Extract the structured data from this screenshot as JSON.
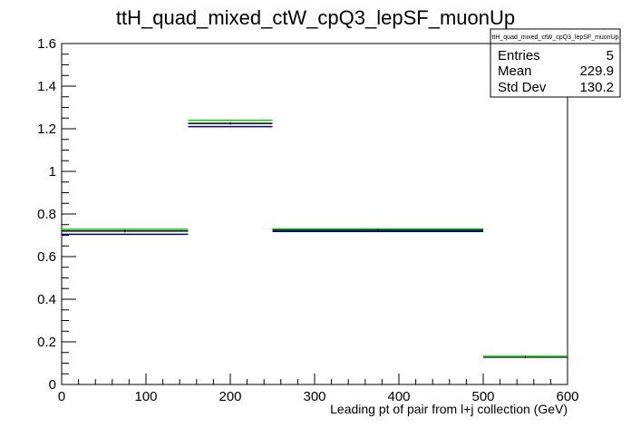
{
  "chart_data": {
    "type": "line",
    "title": "ttH_quad_mixed_ctW_cpQ3_lepSF_muonUp",
    "xlabel": "Leading pt of pair from l+j collection (GeV)",
    "ylabel": "",
    "xlim": [
      0,
      600
    ],
    "ylim": [
      0,
      1.6
    ],
    "x_ticks": [
      0,
      100,
      200,
      300,
      400,
      500,
      600
    ],
    "y_ticks": [
      "0",
      "0.2",
      "0.4",
      "0.6",
      "0.8",
      "1",
      "1.2",
      "1.4",
      "1.6"
    ],
    "bin_edges": [
      0,
      150,
      250,
      500,
      600
    ],
    "series": [
      {
        "color": "#000000",
        "values": [
          0.72,
          1.225,
          0.725,
          0.13
        ]
      },
      {
        "color": "#00cc00",
        "values": [
          0.728,
          1.24,
          0.73,
          0.132
        ]
      },
      {
        "color": "#000099",
        "values": [
          0.705,
          1.21,
          0.718,
          0.128
        ]
      }
    ],
    "grid": false,
    "stats_box": {
      "name": "ttH_quad_mixed_ctW_cpQ3_lepSF_muonUp",
      "rows": [
        {
          "label": "Entries",
          "value": "5"
        },
        {
          "label": "Mean",
          "value": "229.9"
        },
        {
          "label": "Std Dev",
          "value": "130.2"
        }
      ]
    }
  }
}
